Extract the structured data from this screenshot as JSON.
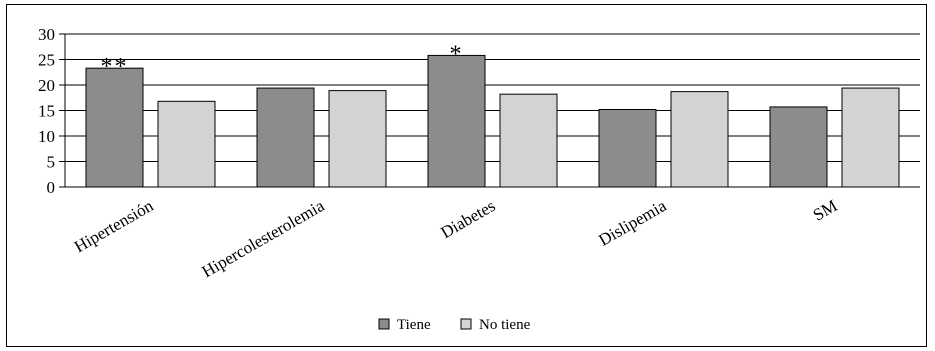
{
  "chart_data": {
    "type": "bar",
    "title": "",
    "xlabel": "",
    "ylabel": "",
    "ylim": [
      0,
      30
    ],
    "yticks": [
      "0",
      "5",
      "10",
      "15",
      "20",
      "25",
      "30"
    ],
    "grid": true,
    "legend_position": "bottom-center",
    "categories": [
      "Hipertensión",
      "Hipercolesterolemia",
      "Diabetes",
      "Dislipemia",
      "SM"
    ],
    "series": [
      {
        "name": "Tiene",
        "values": [
          23.3,
          19.4,
          25.8,
          15.2,
          15.7
        ],
        "color": "#8c8c8c"
      },
      {
        "name": "No tiene",
        "values": [
          16.8,
          18.9,
          18.2,
          18.7,
          19.4
        ],
        "color": "#d3d3d3"
      }
    ],
    "annotations": [
      {
        "category": "Hipertensión",
        "series": "Tiene",
        "text": "**"
      },
      {
        "category": "Diabetes",
        "series": "Tiene",
        "text": "*"
      }
    ]
  }
}
